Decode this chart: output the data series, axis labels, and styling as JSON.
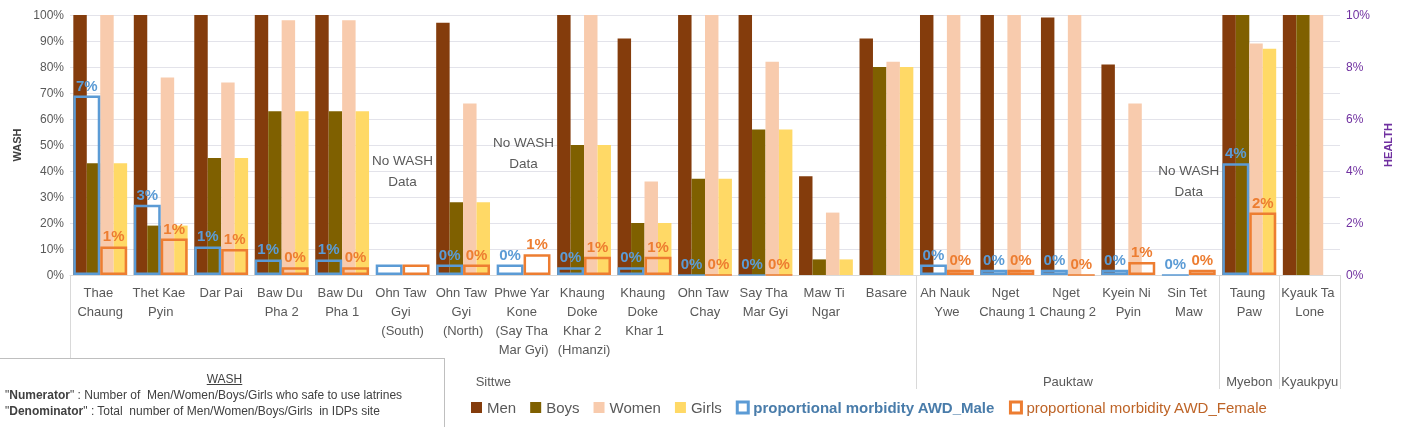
{
  "chart_data": {
    "type": "bar",
    "categories": [
      "Thae Chaung",
      "Thet Kae Pyin",
      "Dar Pai",
      "Baw Du Pha 2",
      "Baw Du Pha 1",
      "Ohn Taw Gyi (South)",
      "Ohn Taw Gyi (North)",
      "Phwe Yar Kone (Say Tha Mar Gyi)",
      "Khaung Doke Khar 2 (Hmanzi)",
      "Khaung Doke Khar 1",
      "Ohn Taw Chay",
      "Say Tha Mar Gyi",
      "Maw Ti Ngar",
      "Basare",
      "Ah Nauk Ywe",
      "Nget Chaung 1",
      "Nget Chaung 2",
      "Kyein Ni Pyin",
      "Sin Tet Maw",
      "Taung Paw",
      "Kyauk Ta Lone"
    ],
    "series": [
      {
        "name": "Men",
        "color": "#843c0c",
        "values": [
          100,
          100,
          100,
          100,
          100,
          null,
          97,
          null,
          100,
          91,
          100,
          100,
          38,
          91,
          100,
          100,
          99,
          81,
          null,
          100,
          100
        ]
      },
      {
        "name": "Boys",
        "color": "#7f6000",
        "values": [
          43,
          19,
          45,
          63,
          63,
          null,
          28,
          null,
          50,
          20,
          37,
          56,
          6,
          80,
          null,
          null,
          null,
          null,
          null,
          100,
          100
        ]
      },
      {
        "name": "Women",
        "color": "#f8cbad",
        "values": [
          100,
          76,
          74,
          98,
          98,
          null,
          66,
          null,
          100,
          36,
          100,
          82,
          24,
          82,
          100,
          100,
          100,
          66,
          null,
          89,
          100
        ]
      },
      {
        "name": "Girls",
        "color": "#ffd966",
        "values": [
          43,
          19,
          45,
          63,
          63,
          null,
          28,
          null,
          50,
          20,
          37,
          56,
          6,
          80,
          null,
          null,
          null,
          null,
          null,
          87,
          null
        ]
      },
      {
        "name": "proportional morbidity AWD_Male",
        "color": "#5b9bd5",
        "axis": "y2",
        "values": [
          6.9,
          2.7,
          1.1,
          0.6,
          0.6,
          0.4,
          0.4,
          0.4,
          0.3,
          0.3,
          0,
          0,
          null,
          null,
          0.4,
          0.2,
          0.2,
          0.2,
          0,
          4.3,
          null
        ],
        "value_labels": [
          "7%",
          "3%",
          "1%",
          "1%",
          "1%",
          null,
          "0%",
          "0%",
          "0%",
          "0%",
          "0%",
          "0%",
          null,
          null,
          "0%",
          "0%",
          "0%",
          "0%",
          "0%",
          "4%",
          null
        ]
      },
      {
        "name": "proportional morbidity AWD_Female",
        "color": "#ed7d31",
        "axis": "y2",
        "values": [
          1.1,
          1.4,
          1.0,
          0.3,
          0.3,
          0.4,
          0.4,
          0.8,
          0.7,
          0.7,
          0,
          0,
          null,
          null,
          0.2,
          0.2,
          0,
          0.5,
          0.2,
          2.4,
          null
        ],
        "value_labels": [
          "1%",
          "1%",
          "1%",
          "0%",
          "0%",
          null,
          "0%",
          "1%",
          "1%",
          "1%",
          "0%",
          "0%",
          null,
          null,
          "0%",
          "0%",
          "0%",
          "1%",
          "0%",
          "2%",
          null
        ]
      }
    ],
    "ylabel": "WASH",
    "y2label": "HEALTH",
    "ylim": [
      0,
      100
    ],
    "yticks": [
      {
        "value": 0,
        "label": "0%"
      },
      {
        "value": 10,
        "label": "10%"
      },
      {
        "value": 20,
        "label": "20%"
      },
      {
        "value": 30,
        "label": "30%"
      },
      {
        "value": 40,
        "label": "40%"
      },
      {
        "value": 50,
        "label": "50%"
      },
      {
        "value": 60,
        "label": "60%"
      },
      {
        "value": 70,
        "label": "70%"
      },
      {
        "value": 80,
        "label": "80%"
      },
      {
        "value": 90,
        "label": "90%"
      },
      {
        "value": 100,
        "label": "100%"
      }
    ],
    "y2lim": [
      0,
      10
    ],
    "y2ticks": [
      {
        "value": 0,
        "label": "0%"
      },
      {
        "value": 2,
        "label": "2%"
      },
      {
        "value": 4,
        "label": "4%"
      },
      {
        "value": 6,
        "label": "6%"
      },
      {
        "value": 8,
        "label": "8%"
      },
      {
        "value": 10,
        "label": "10%"
      }
    ],
    "annotations": [
      "No WASH Data",
      "No WASH Data",
      "No WASH Data",
      "Sittwe",
      "Pauktaw",
      "Myebon",
      "Kyaukpyu",
      "WASH",
      "\"Numerator\" : Number of  Men/Women/Boys/Girls who safe to use latrines",
      "\"Denominator\" : Total  number of Men/Women/Boys/Girls  in IDPs site"
    ],
    "grid": "y",
    "legend": "bottom"
  }
}
